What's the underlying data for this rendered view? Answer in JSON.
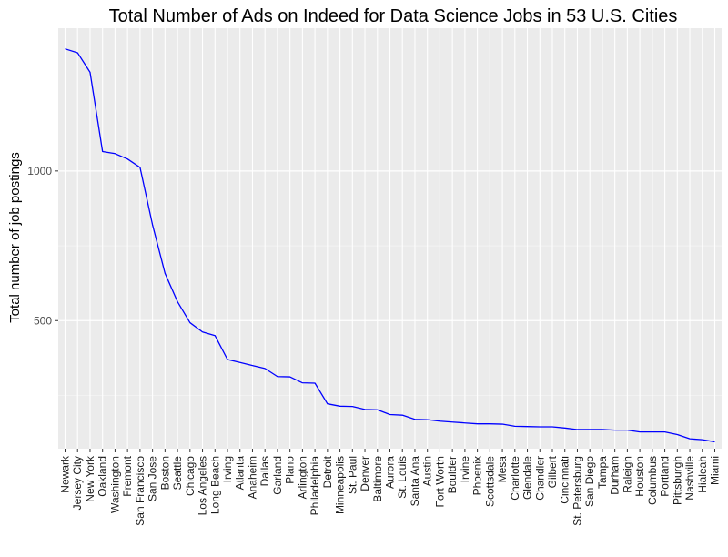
{
  "chart_data": {
    "type": "line",
    "title": "Total Number of Ads on Indeed for Data Science Jobs in 53 U.S. Cities",
    "xlabel": "",
    "ylabel": "Total number of job postings",
    "categories": [
      "Newark",
      "Jersey City",
      "New York",
      "Oakland",
      "Washington",
      "Fremont",
      "San Francisco",
      "San Jose",
      "Boston",
      "Seattle",
      "Chicago",
      "Los Angeles",
      "Long Beach",
      "Irving",
      "Atlanta",
      "Anaheim",
      "Dallas",
      "Garland",
      "Plano",
      "Arlington",
      "Philadelphia",
      "Detroit",
      "Minneapolis",
      "St. Paul",
      "Denver",
      "Baltimore",
      "Aurora",
      "St. Louis",
      "Santa Ana",
      "Austin",
      "Fort Worth",
      "Boulder",
      "Irvine",
      "Phoenix",
      "Scottsdale",
      "Mesa",
      "Charlotte",
      "Glendale",
      "Chandler",
      "Gilbert",
      "Cincinnati",
      "St. Petersburg",
      "San Diego",
      "Tampa",
      "Durham",
      "Raleigh",
      "Houston",
      "Columbus",
      "Portland",
      "Pittsburgh",
      "Nashville",
      "Hialeah",
      "Miami"
    ],
    "series": [
      {
        "color": "#0000ff",
        "values": [
          1408,
          1395,
          1330,
          1065,
          1058,
          1040,
          1012,
          820,
          658,
          563,
          493,
          462,
          450,
          370,
          360,
          350,
          340,
          313,
          312,
          292,
          291,
          222,
          214,
          213,
          203,
          202,
          186,
          184,
          170,
          169,
          164,
          161,
          158,
          155,
          155,
          154,
          147,
          146,
          145,
          145,
          141,
          136,
          136,
          136,
          134,
          134,
          128,
          128,
          128,
          119,
          105,
          102,
          95
        ]
      }
    ],
    "yticks": [
      500,
      1000
    ],
    "ylim": [
      72,
      1477
    ],
    "grid": true,
    "legend": "none"
  }
}
